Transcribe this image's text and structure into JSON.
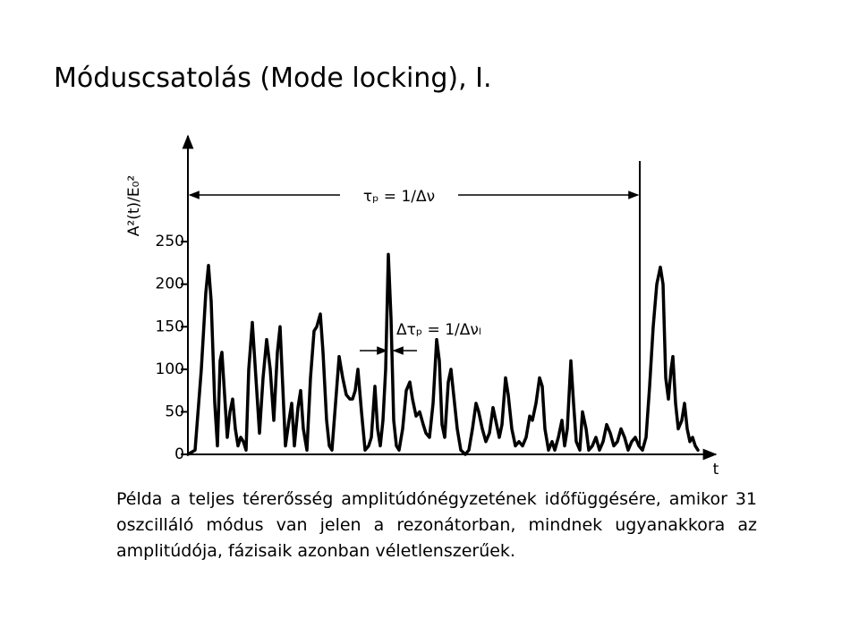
{
  "slide": {
    "title": "Móduscsatolás (Mode locking), I.",
    "caption": "Példa a teljes térerősség amplitúdónégyzetének időfüggésére, amikor 31 oszcilláló módus van jelen a rezonátorban, mindnek ugyanakkora az amplitúdója, fázisaik azonban véletlenszerűek."
  },
  "chart_data": {
    "type": "line",
    "y_label": "A²(t)/E₀²",
    "x_label": "t",
    "annotations": {
      "period": "τₚ = 1/Δν",
      "pulse_width": "Δτₚ = 1/Δνₗ"
    },
    "xlim": [
      0,
      600
    ],
    "ylim": [
      0,
      370
    ],
    "yticks": [
      0,
      50,
      100,
      150,
      200,
      250
    ],
    "series": [
      {
        "color": "#000000",
        "x": [
          0,
          8,
          15,
          20,
          23,
          26,
          30,
          33,
          36,
          38,
          41,
          44,
          47,
          50,
          53,
          56,
          59,
          62,
          65,
          68,
          72,
          76,
          80,
          84,
          88,
          92,
          96,
          100,
          103,
          106,
          109,
          113,
          116,
          119,
          123,
          126,
          129,
          133,
          137,
          141,
          144,
          148,
          151,
          155,
          158,
          161,
          165,
          169,
          173,
          177,
          181,
          184,
          187,
          190,
          194,
          198,
          202,
          205,
          209,
          212,
          215,
          218,
          221,
          224,
          227,
          230,
          233,
          236,
          240,
          244,
          248,
          251,
          255,
          259,
          263,
          266,
          270,
          274,
          278,
          281,
          284,
          287,
          291,
          294,
          297,
          301,
          305,
          310,
          314,
          318,
          322,
          325,
          329,
          333,
          337,
          341,
          344,
          348,
          351,
          355,
          358,
          362,
          366,
          370,
          374,
          378,
          382,
          385,
          389,
          393,
          396,
          399,
          403,
          407,
          410,
          414,
          418,
          421,
          424,
          428,
          431,
          434,
          438,
          441,
          445,
          448,
          452,
          456,
          460,
          464,
          468,
          472,
          476,
          480,
          484,
          488,
          492,
          496,
          500,
          504,
          508,
          512,
          516,
          520,
          524,
          528,
          531,
          534,
          537,
          540,
          542,
          545,
          548,
          552,
          555,
          558,
          561,
          564,
          567,
          570
        ],
        "values": [
          0,
          5,
          100,
          190,
          222,
          180,
          60,
          10,
          110,
          120,
          70,
          20,
          50,
          65,
          30,
          10,
          20,
          15,
          5,
          100,
          155,
          90,
          25,
          90,
          135,
          100,
          40,
          120,
          150,
          80,
          10,
          40,
          60,
          10,
          55,
          75,
          30,
          5,
          90,
          145,
          150,
          165,
          120,
          40,
          10,
          5,
          60,
          115,
          90,
          70,
          65,
          65,
          75,
          100,
          50,
          5,
          10,
          20,
          80,
          30,
          10,
          40,
          100,
          235,
          160,
          40,
          10,
          5,
          30,
          75,
          85,
          65,
          45,
          50,
          35,
          25,
          20,
          60,
          135,
          110,
          35,
          20,
          85,
          100,
          70,
          30,
          5,
          0,
          5,
          30,
          60,
          50,
          30,
          15,
          25,
          55,
          40,
          20,
          35,
          90,
          70,
          30,
          10,
          15,
          10,
          20,
          45,
          40,
          60,
          90,
          80,
          30,
          5,
          15,
          5,
          20,
          40,
          10,
          30,
          110,
          60,
          15,
          5,
          50,
          30,
          5,
          10,
          20,
          5,
          15,
          35,
          25,
          10,
          15,
          30,
          20,
          5,
          15,
          20,
          10,
          5,
          20,
          80,
          150,
          200,
          220,
          200,
          90,
          65,
          100,
          115,
          60,
          30,
          40,
          60,
          30,
          15,
          20,
          10,
          5
        ]
      }
    ]
  }
}
